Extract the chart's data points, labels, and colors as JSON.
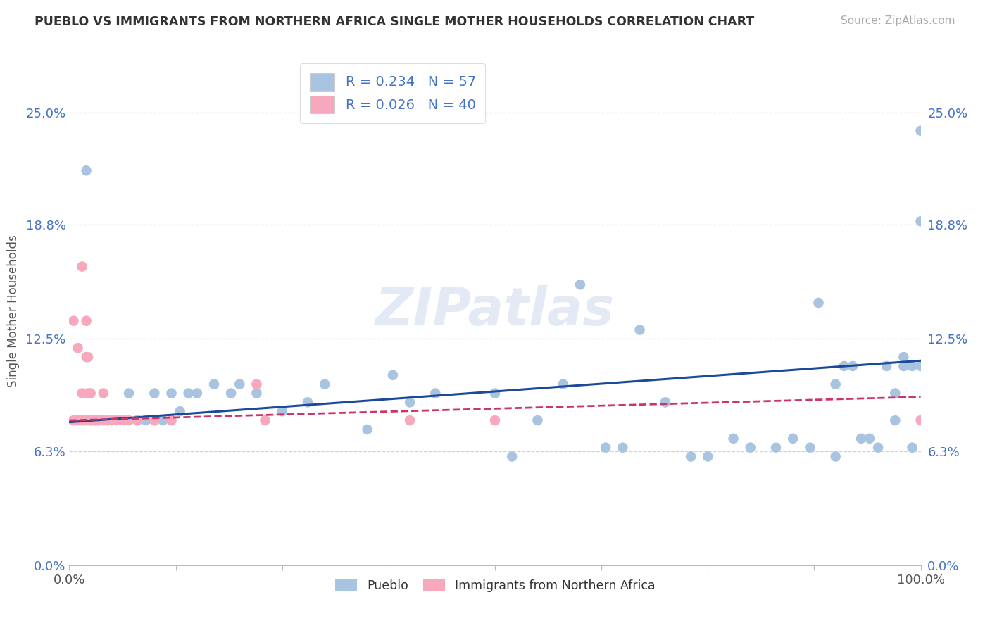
{
  "title": "PUEBLO VS IMMIGRANTS FROM NORTHERN AFRICA SINGLE MOTHER HOUSEHOLDS CORRELATION CHART",
  "source": "Source: ZipAtlas.com",
  "ylabel": "Single Mother Households",
  "xlim": [
    0.0,
    1.0
  ],
  "ylim": [
    0.0,
    0.281
  ],
  "yticks": [
    0.0,
    0.063,
    0.125,
    0.188,
    0.25
  ],
  "ytick_labels": [
    "0.0%",
    "6.3%",
    "12.5%",
    "18.8%",
    "25.0%"
  ],
  "xticks_minor": [
    0.0,
    0.125,
    0.25,
    0.375,
    0.5,
    0.625,
    0.75,
    0.875,
    1.0
  ],
  "xtick_major": [
    0.0,
    1.0
  ],
  "xtick_labels": [
    "0.0%",
    "100.0%"
  ],
  "pueblo_R": 0.234,
  "pueblo_N": 57,
  "immigrants_R": 0.026,
  "immigrants_N": 40,
  "pueblo_color": "#a8c4e0",
  "pueblo_line_color": "#1a4a99",
  "immigrants_color": "#f7a8bc",
  "immigrants_line_color": "#cc3366",
  "background_color": "#ffffff",
  "grid_color": "#d0d0d0",
  "pueblo_scatter_x": [
    0.02,
    0.05,
    0.07,
    0.08,
    0.09,
    0.1,
    0.1,
    0.11,
    0.12,
    0.13,
    0.14,
    0.15,
    0.17,
    0.19,
    0.2,
    0.22,
    0.25,
    0.28,
    0.3,
    0.35,
    0.38,
    0.4,
    0.43,
    0.5,
    0.52,
    0.55,
    0.58,
    0.6,
    0.63,
    0.65,
    0.67,
    0.7,
    0.73,
    0.75,
    0.78,
    0.8,
    0.83,
    0.85,
    0.87,
    0.88,
    0.9,
    0.9,
    0.91,
    0.92,
    0.93,
    0.94,
    0.95,
    0.96,
    0.97,
    0.97,
    0.98,
    0.98,
    0.99,
    0.99,
    1.0,
    1.0,
    1.0
  ],
  "pueblo_scatter_y": [
    0.218,
    0.08,
    0.095,
    0.08,
    0.08,
    0.08,
    0.095,
    0.08,
    0.095,
    0.085,
    0.095,
    0.095,
    0.1,
    0.095,
    0.1,
    0.095,
    0.085,
    0.09,
    0.1,
    0.075,
    0.105,
    0.09,
    0.095,
    0.095,
    0.06,
    0.08,
    0.1,
    0.155,
    0.065,
    0.065,
    0.13,
    0.09,
    0.06,
    0.06,
    0.07,
    0.065,
    0.065,
    0.07,
    0.065,
    0.145,
    0.1,
    0.06,
    0.11,
    0.11,
    0.07,
    0.07,
    0.065,
    0.11,
    0.095,
    0.08,
    0.115,
    0.11,
    0.11,
    0.065,
    0.11,
    0.19,
    0.24
  ],
  "immigrants_scatter_x": [
    0.005,
    0.005,
    0.008,
    0.01,
    0.01,
    0.012,
    0.015,
    0.015,
    0.015,
    0.018,
    0.02,
    0.02,
    0.02,
    0.022,
    0.022,
    0.025,
    0.025,
    0.025,
    0.028,
    0.03,
    0.03,
    0.032,
    0.035,
    0.035,
    0.04,
    0.04,
    0.045,
    0.05,
    0.055,
    0.06,
    0.065,
    0.07,
    0.08,
    0.1,
    0.12,
    0.22,
    0.23,
    0.4,
    0.5,
    1.0
  ],
  "immigrants_scatter_y": [
    0.08,
    0.135,
    0.08,
    0.08,
    0.12,
    0.08,
    0.08,
    0.095,
    0.165,
    0.08,
    0.08,
    0.115,
    0.135,
    0.095,
    0.115,
    0.08,
    0.08,
    0.095,
    0.08,
    0.08,
    0.08,
    0.08,
    0.08,
    0.08,
    0.08,
    0.095,
    0.08,
    0.08,
    0.08,
    0.08,
    0.08,
    0.08,
    0.08,
    0.08,
    0.08,
    0.1,
    0.08,
    0.08,
    0.08,
    0.08
  ]
}
